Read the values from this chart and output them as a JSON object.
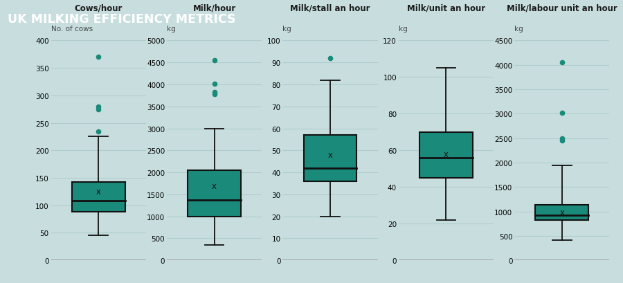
{
  "title": "UK MILKING EFFICIENCY METRICS",
  "title_bg": "#1a7a70",
  "title_color": "#ffffff",
  "bg_color": "#c8dede",
  "box_color": "#1a8a7a",
  "whisker_color": "#111111",
  "median_color": "#111111",
  "mean_marker": "x",
  "mean_color": "#111111",
  "outlier_color": "#1a8a7a",
  "grid_color": "#b0cccc",
  "panels": [
    {
      "subtitle": "Cows/hour",
      "unit_label": "No. of cows",
      "ylim": [
        0,
        400
      ],
      "yticks": [
        0,
        50,
        100,
        150,
        200,
        250,
        300,
        350,
        400
      ],
      "q1": 88,
      "median": 108,
      "q3": 143,
      "mean": 125,
      "whisker_lo": 45,
      "whisker_hi": 225,
      "outliers": [
        370,
        280,
        275,
        235
      ]
    },
    {
      "subtitle": "Milk/hour",
      "unit_label": "kg",
      "ylim": [
        0,
        5000
      ],
      "yticks": [
        0,
        500,
        1000,
        1500,
        2000,
        2500,
        3000,
        3500,
        4000,
        4500,
        5000
      ],
      "q1": 1000,
      "median": 1380,
      "q3": 2050,
      "mean": 1700,
      "whisker_lo": 350,
      "whisker_hi": 3000,
      "outliers": [
        4550,
        4020,
        3820,
        3780
      ]
    },
    {
      "subtitle": "Milk/stall an hour",
      "unit_label": "kg",
      "ylim": [
        0,
        100
      ],
      "yticks": [
        0,
        10,
        20,
        30,
        40,
        50,
        60,
        70,
        80,
        90,
        100
      ],
      "q1": 36,
      "median": 42,
      "q3": 57,
      "mean": 48,
      "whisker_lo": 20,
      "whisker_hi": 82,
      "outliers": [
        92
      ]
    },
    {
      "subtitle": "Milk/unit an hour",
      "unit_label": "kg",
      "ylim": [
        0,
        120
      ],
      "yticks": [
        0,
        20,
        40,
        60,
        80,
        100,
        120
      ],
      "q1": 45,
      "median": 56,
      "q3": 70,
      "mean": 58,
      "whisker_lo": 22,
      "whisker_hi": 105,
      "outliers": []
    },
    {
      "subtitle": "Milk/labour unit an hour",
      "unit_label": "kg",
      "ylim": [
        0,
        4500
      ],
      "yticks": [
        0,
        500,
        1000,
        1500,
        2000,
        2500,
        3000,
        3500,
        4000,
        4500
      ],
      "q1": 820,
      "median": 930,
      "q3": 1130,
      "mean": 990,
      "whisker_lo": 420,
      "whisker_hi": 1950,
      "outliers": [
        4050,
        3020,
        2500,
        2450
      ]
    }
  ]
}
